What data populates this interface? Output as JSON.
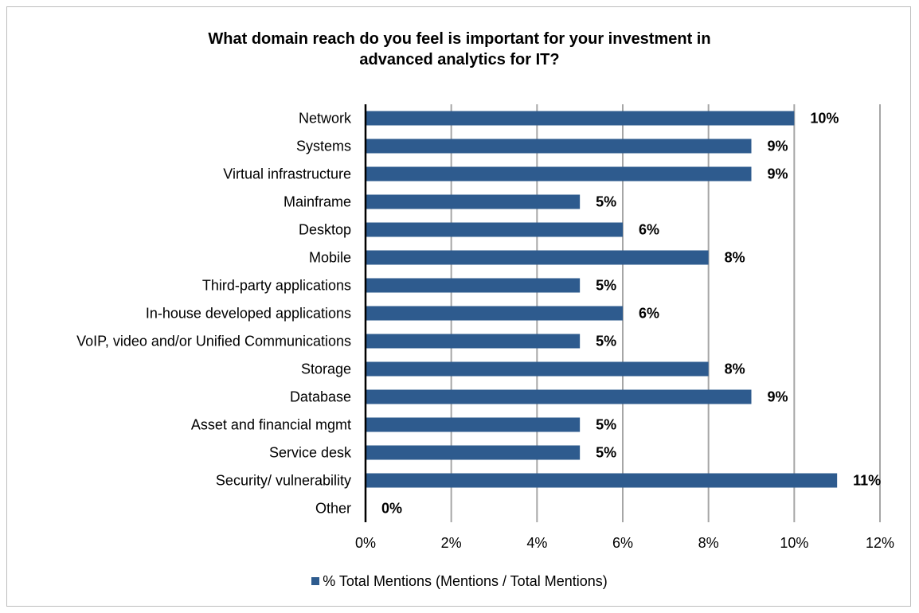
{
  "chart_data": {
    "type": "bar",
    "orientation": "horizontal",
    "title": "What domain reach do you feel is important for your investment in\nadvanced analytics for IT?",
    "categories": [
      "Network",
      "Systems",
      "Virtual infrastructure",
      "Mainframe",
      "Desktop",
      "Mobile",
      "Third-party applications",
      "In-house developed applications",
      "VoIP, video and/or Unified Communications",
      "Storage",
      "Database",
      "Asset and financial mgmt",
      "Service desk",
      "Security/ vulnerability",
      "Other"
    ],
    "series": [
      {
        "name": "% Total Mentions (Mentions / Total Mentions)",
        "values": [
          10,
          9,
          9,
          5,
          6,
          8,
          5,
          6,
          5,
          8,
          9,
          5,
          5,
          11,
          0
        ],
        "data_labels": [
          "10%",
          "9%",
          "9%",
          "5%",
          "6%",
          "8%",
          "5%",
          "6%",
          "5%",
          "8%",
          "9%",
          "5%",
          "5%",
          "11%",
          "0%"
        ]
      }
    ],
    "xlim": [
      0,
      12
    ],
    "x_ticks": [
      0,
      2,
      4,
      6,
      8,
      10,
      12
    ],
    "x_tick_labels": [
      "0%",
      "2%",
      "4%",
      "6%",
      "8%",
      "10%",
      "12%"
    ],
    "xlabel": "",
    "ylabel": "",
    "grid": "vertical",
    "legend_position": "bottom",
    "bar_color": "#2e5b8e",
    "grid_color": "#a6a6a6"
  }
}
